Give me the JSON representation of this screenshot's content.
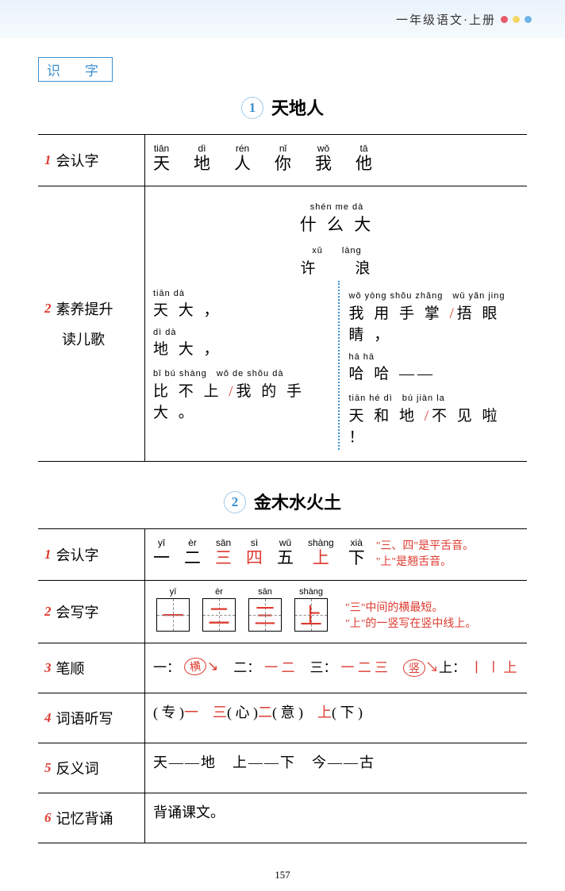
{
  "header": {
    "text": "一年级语文·上册",
    "dots": [
      "#e85a6a",
      "#f5d765",
      "#6fb6e8"
    ]
  },
  "badge": "识　字",
  "pageNum": "157",
  "lesson1": {
    "num": "1",
    "title": "天地人",
    "row1": {
      "idx": "1",
      "label": "会认字",
      "chars": [
        {
          "py": "tiān",
          "hz": "天"
        },
        {
          "py": "dì",
          "hz": "地"
        },
        {
          "py": "rén",
          "hz": "人"
        },
        {
          "py": "nǐ",
          "hz": "你"
        },
        {
          "py": "wǒ",
          "hz": "我"
        },
        {
          "py": "tā",
          "hz": "他"
        }
      ]
    },
    "row2": {
      "idx": "2",
      "label": "素养提升",
      "sub": "读儿歌",
      "center1": {
        "py": "shén me dà",
        "hz": "什 么 大"
      },
      "center2": {
        "py": "xǔ　　làng",
        "hz": "许　　浪"
      },
      "left": [
        {
          "py": "tiān dà",
          "hz": "天 大 ，"
        },
        {
          "py": "dì dà",
          "hz": "地 大 ，"
        },
        {
          "py": "bǐ bú shàng　wǒ de shǒu dà",
          "hz": "比 不 上 <sep>/</sep>我 的 手 大 。"
        }
      ],
      "right": [
        {
          "py": "wǒ yòng shǒu zhǎng　wǔ yǎn jing",
          "hz": "我 用 手 掌 <sep>/</sep>捂 眼 睛 ，"
        },
        {
          "py": "hā hā",
          "hz": "哈 哈 ——"
        },
        {
          "py": "tiān hé dì　bú jiàn la",
          "hz": "天 和 地 <sep>/</sep>不 见 啦 ！"
        }
      ]
    }
  },
  "lesson2": {
    "num": "2",
    "title": "金木水火土",
    "row1": {
      "idx": "1",
      "label": "会认字",
      "chars": [
        {
          "py": "yī",
          "hz": "一"
        },
        {
          "py": "èr",
          "hz": "二"
        },
        {
          "py": "sān",
          "hz": "三",
          "red": true
        },
        {
          "py": "sì",
          "hz": "四",
          "red": true
        },
        {
          "py": "wǔ",
          "hz": "五"
        },
        {
          "py": "shàng",
          "hz": "上",
          "red": true
        },
        {
          "py": "xià",
          "hz": "下"
        }
      ],
      "note1": "\"三、四\"是平舌音。",
      "note2": "\"上\"是翘舌音。"
    },
    "row2": {
      "idx": "2",
      "label": "会写字",
      "chars": [
        {
          "py": "yī",
          "hz": "一"
        },
        {
          "py": "èr",
          "hz": "二"
        },
        {
          "py": "sān",
          "hz": "三"
        },
        {
          "py": "shàng",
          "hz": "上"
        }
      ],
      "note1": "\"三\"中间的横最短。",
      "note2": "\"上\"的一竖写在竖中线上。"
    },
    "row3": {
      "idx": "3",
      "label": "笔顺",
      "items": [
        "一：",
        "二：",
        "三：",
        "上："
      ],
      "annot1": "横",
      "annot2": "竖"
    },
    "row4": {
      "idx": "4",
      "label": "词语听写",
      "t1": "( 专 )",
      "a1": "一　三",
      "t2": "( 心 )",
      "a2": "二",
      "t3": "( 意 )　",
      "a3": "上",
      "t4": "( 下 )"
    },
    "row5": {
      "idx": "5",
      "label": "反义词",
      "text": "天——地　上——下　今——古"
    },
    "row6": {
      "idx": "6",
      "label": "记忆背诵",
      "text": "背诵课文。"
    }
  }
}
